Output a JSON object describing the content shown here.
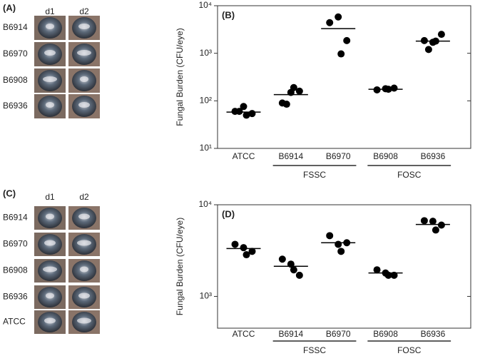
{
  "panels": [
    {
      "label": "(A)",
      "columns": [
        "d1",
        "d2"
      ],
      "rows": [
        "B6914",
        "B6970",
        "B6908",
        "B6936"
      ]
    },
    {
      "label": "(C)",
      "columns": [
        "d1",
        "d2"
      ],
      "rows": [
        "B6914",
        "B6970",
        "B6908",
        "B6936",
        "ATCC"
      ]
    }
  ],
  "chart_data": [
    {
      "type": "scatter",
      "panel_label": "(B)",
      "y_label": "Fungal Burden (CFU/eye)",
      "log_y": true,
      "ylim": [
        10,
        10000
      ],
      "yticks": [
        {
          "value": 10,
          "label": "10¹"
        },
        {
          "value": 100,
          "label": "10²"
        },
        {
          "value": 1000,
          "label": "10³"
        },
        {
          "value": 10000,
          "label": "10⁴"
        }
      ],
      "categories": [
        "ATCC",
        "B6914",
        "B6970",
        "B6908",
        "B6936"
      ],
      "values": [
        [
          60,
          76,
          54,
          50,
          60
        ],
        [
          90,
          150,
          160,
          190,
          85
        ],
        [
          4400,
          5800,
          1850,
          970
        ],
        [
          170,
          180,
          185,
          175
        ],
        [
          1850,
          1700,
          2500,
          1800,
          1200
        ]
      ],
      "medians": [
        58,
        135,
        3300,
        175,
        1800
      ],
      "color": "#000000",
      "groups": [
        {
          "label": "FSSC",
          "members": [
            "B6914",
            "B6970"
          ]
        },
        {
          "label": "FOSC",
          "members": [
            "B6908",
            "B6936"
          ]
        }
      ]
    },
    {
      "type": "scatter",
      "panel_label": "(D)",
      "y_label": "Fungal Burden (CFU/eye)",
      "log_y": true,
      "ylim": [
        450,
        10000
      ],
      "yticks": [
        {
          "value": 1000,
          "label": "10³"
        },
        {
          "value": 10000,
          "label": "10⁴"
        }
      ],
      "categories": [
        "ATCC",
        "B6914",
        "B6970",
        "B6908",
        "B6936"
      ],
      "values": [
        [
          3700,
          3400,
          3100,
          2850
        ],
        [
          2550,
          2250,
          1700,
          1950
        ],
        [
          4600,
          3700,
          3850,
          3100
        ],
        [
          1950,
          1800,
          1700,
          1700
        ],
        [
          6700,
          6600,
          6000,
          5300
        ]
      ],
      "medians": [
        3330,
        2130,
        3850,
        1800,
        6100
      ],
      "color": "#000000",
      "groups": [
        {
          "label": "FSSC",
          "members": [
            "B6914",
            "B6970"
          ]
        },
        {
          "label": "FOSC",
          "members": [
            "B6908",
            "B6936"
          ]
        }
      ]
    }
  ]
}
